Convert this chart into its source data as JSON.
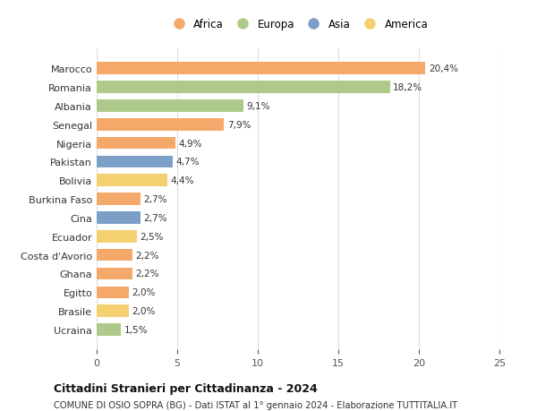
{
  "categories": [
    "Marocco",
    "Romania",
    "Albania",
    "Senegal",
    "Nigeria",
    "Pakistan",
    "Bolivia",
    "Burkina Faso",
    "Cina",
    "Ecuador",
    "Costa d'Avorio",
    "Ghana",
    "Egitto",
    "Brasile",
    "Ucraina"
  ],
  "values": [
    20.4,
    18.2,
    9.1,
    7.9,
    4.9,
    4.7,
    4.4,
    2.7,
    2.7,
    2.5,
    2.2,
    2.2,
    2.0,
    2.0,
    1.5
  ],
  "labels": [
    "20,4%",
    "18,2%",
    "9,1%",
    "7,9%",
    "4,9%",
    "4,7%",
    "4,4%",
    "2,7%",
    "2,7%",
    "2,5%",
    "2,2%",
    "2,2%",
    "2,0%",
    "2,0%",
    "1,5%"
  ],
  "colors": [
    "#F4A96A",
    "#AECA8A",
    "#AECA8A",
    "#F4A96A",
    "#F4A96A",
    "#7B9FC7",
    "#F5D070",
    "#F4A96A",
    "#7B9FC7",
    "#F5D070",
    "#F4A96A",
    "#F4A96A",
    "#F4A96A",
    "#F5D070",
    "#AECA8A"
  ],
  "legend_labels": [
    "Africa",
    "Europa",
    "Asia",
    "America"
  ],
  "legend_colors": [
    "#F4A96A",
    "#AECA8A",
    "#7B9FC7",
    "#F5D070"
  ],
  "xlim": [
    0,
    25
  ],
  "xticks": [
    0,
    5,
    10,
    15,
    20,
    25
  ],
  "title": "Cittadini Stranieri per Cittadinanza - 2024",
  "subtitle": "COMUNE DI OSIO SOPRA (BG) - Dati ISTAT al 1° gennaio 2024 - Elaborazione TUTTITALIA.IT",
  "background_color": "#ffffff",
  "grid_color": "#dddddd"
}
